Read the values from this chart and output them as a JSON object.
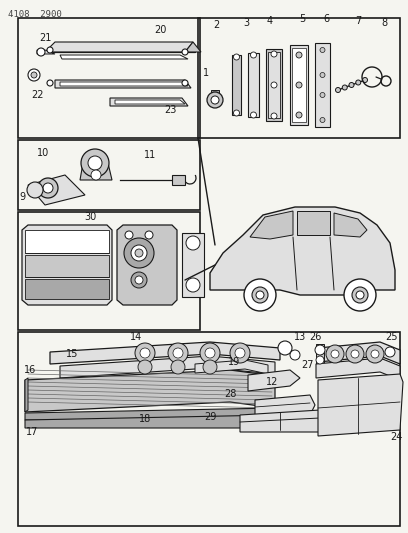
{
  "page_code": "4108  2900",
  "bg_color": "#f5f5f0",
  "lc": "#1a1a1a",
  "gray1": "#e0e0e0",
  "gray2": "#c8c8c8",
  "gray3": "#a8a8a8",
  "white": "#ffffff"
}
